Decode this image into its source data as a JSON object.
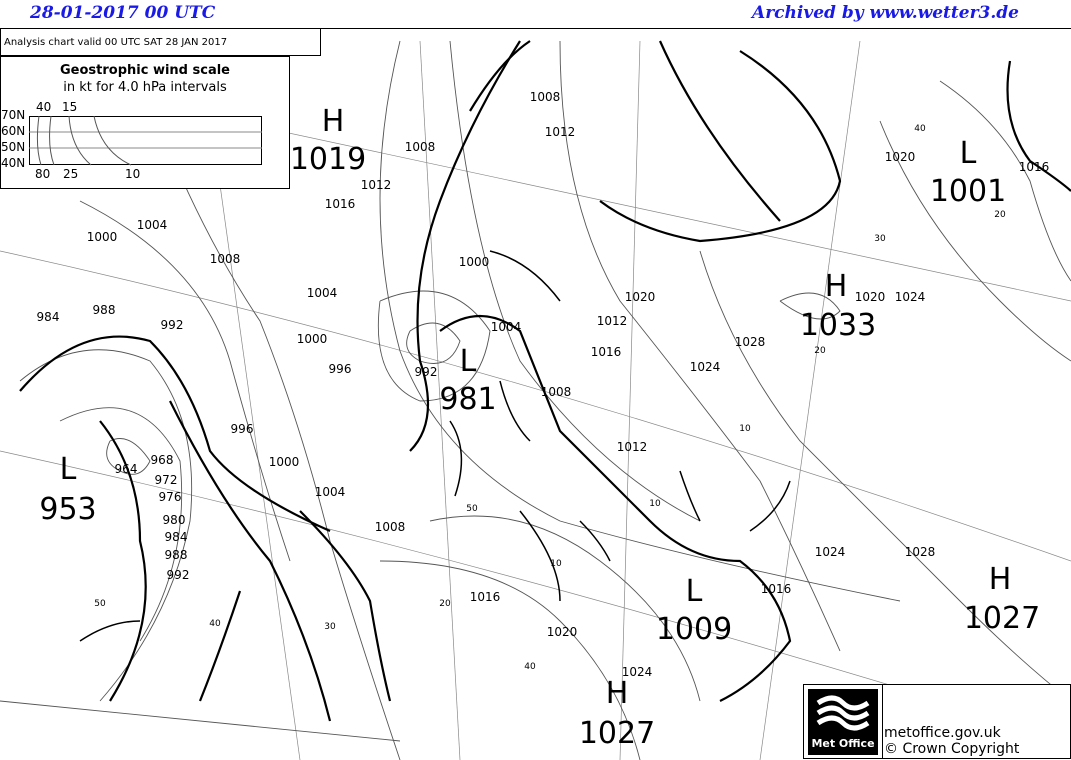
{
  "header": {
    "datetime": "28-01-2017  00 UTC",
    "archive": "Archived by www.wetter3.de"
  },
  "chart": {
    "valid": "Analysis chart  valid 00 UTC SAT 28  JAN 2017"
  },
  "wind_scale": {
    "title": "Geostrophic wind scale",
    "subtitle": "in kt for 4.0 hPa intervals",
    "lat_labels": [
      "70N",
      "60N",
      "50N",
      "40N"
    ],
    "top_labels": [
      "40",
      "15"
    ],
    "bottom_labels": [
      "80",
      "25",
      "10"
    ]
  },
  "pressure_systems": [
    {
      "type": "H",
      "value": "1019"
    },
    {
      "type": "L",
      "value": "1001"
    },
    {
      "type": "H",
      "value": "1033"
    },
    {
      "type": "L",
      "value": "981"
    },
    {
      "type": "L",
      "value": "953"
    },
    {
      "type": "L",
      "value": "1009"
    },
    {
      "type": "H",
      "value": "1027"
    },
    {
      "type": "H",
      "value": "1027"
    }
  ],
  "isobar_labels": [
    "1008",
    "1012",
    "1008",
    "1016",
    "1012",
    "1004",
    "1000",
    "1008",
    "1004",
    "1000",
    "996",
    "992",
    "988",
    "984",
    "1000",
    "1004",
    "1008",
    "1012",
    "1016",
    "1020",
    "1024",
    "1028",
    "1024",
    "1020",
    "1016",
    "1012",
    "1008",
    "1004",
    "1000",
    "996",
    "992",
    "988",
    "984",
    "980",
    "976",
    "972",
    "968",
    "964",
    "992",
    "1024",
    "1016",
    "1020",
    "1016",
    "1020",
    "1024",
    "1028",
    "1024"
  ],
  "wind_labels": [
    "40",
    "30",
    "20",
    "20",
    "10",
    "50",
    "50",
    "40",
    "30",
    "20",
    "10",
    "40",
    "10"
  ],
  "footer": {
    "site": "metoffice.gov.uk",
    "copyright": "© Crown Copyright",
    "logo": "Met Office"
  }
}
